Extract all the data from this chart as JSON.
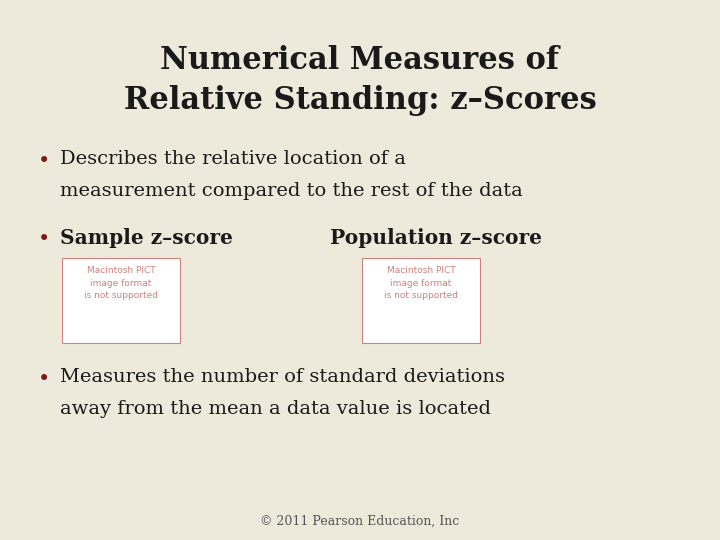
{
  "background_color": "#eeeadb",
  "title_line1": "Numerical Measures of",
  "title_line2": "Relative Standing: z–Scores",
  "title_color": "#1a1a1a",
  "title_fontsize": 22,
  "title_fontweight": "bold",
  "bullet1_line1": "Describes the relative location of a",
  "bullet1_line2": "measurement compared to the rest of the data",
  "bullet2_left": "Sample z–score",
  "bullet2_right": "Population z–score",
  "bullet3_line1": "Measures the number of standard deviations",
  "bullet3_line2": "away from the mean a data value is located",
  "bullet_color": "#1a1a1a",
  "bullet_fontsize": 14,
  "bullet2_fontsize": 14.5,
  "bullet_dot_color": "#7a1a1a",
  "box_text": "Macintosh PICT\nimage format\nis not supported",
  "box_text_color": "#d08080",
  "box_bg_color": "#ffffff",
  "box_border_color": "#d08080",
  "footer": "© 2011 Pearson Education, Inc",
  "footer_color": "#555555",
  "footer_fontsize": 9
}
